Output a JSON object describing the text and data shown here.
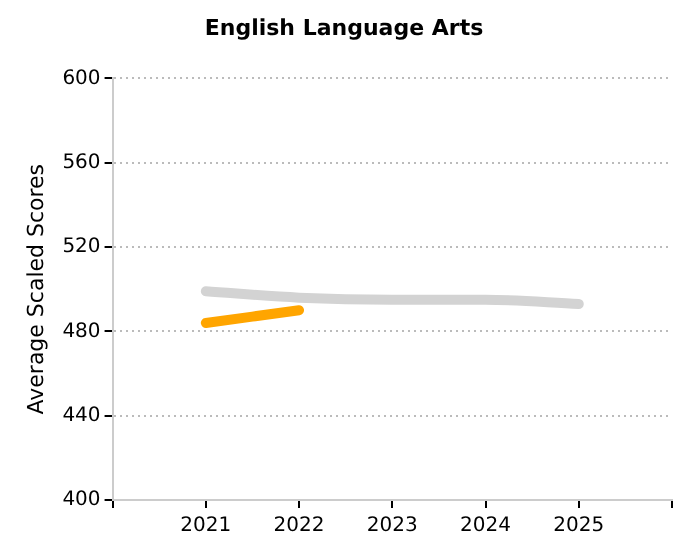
{
  "chart_data": {
    "type": "line",
    "title": "English Language Arts",
    "ylabel": "Average Scaled Scores",
    "x": [
      2021,
      2022,
      2023,
      2024,
      2025
    ],
    "xlim": [
      2020,
      2026
    ],
    "xticks": [
      {
        "value": 2020,
        "label": null
      },
      2021,
      2022,
      2023,
      2024,
      2025,
      {
        "value": 2026,
        "label": null
      }
    ],
    "ylim": [
      400,
      600
    ],
    "yticks": [
      400,
      440,
      480,
      520,
      560,
      600
    ],
    "series": [
      {
        "color": "#d3d3d3",
        "values": [
          499,
          496,
          495,
          495,
          493
        ]
      },
      {
        "color": "#ffa500",
        "values": [
          484,
          490,
          null,
          null,
          null
        ]
      }
    ],
    "grid": "y",
    "legend": false,
    "marker": "none",
    "line_style": "solid"
  }
}
